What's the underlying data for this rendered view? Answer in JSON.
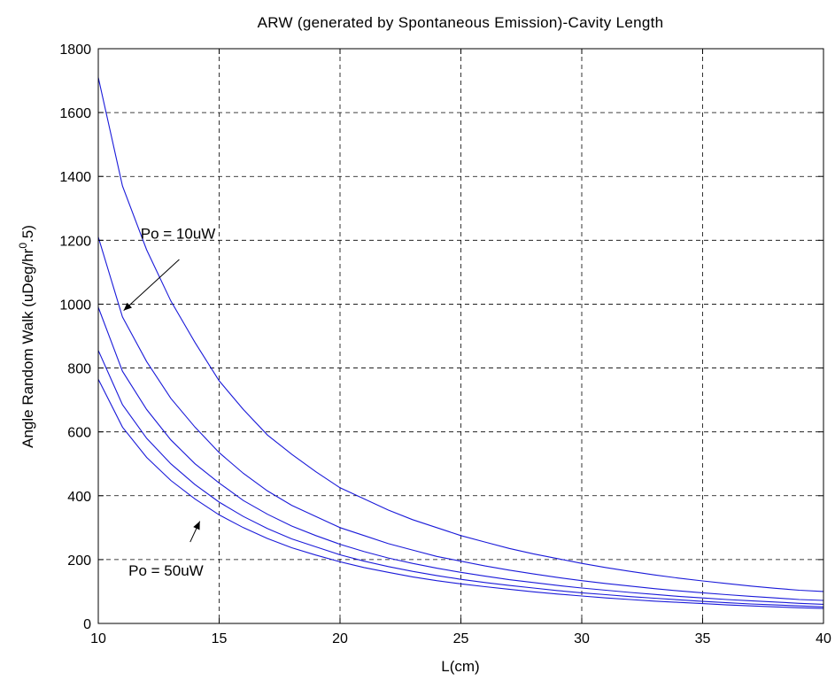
{
  "chart_data": {
    "type": "line",
    "title": "ARW (generated by Spontaneous Emission)-Cavity Length",
    "xlabel": "L(cm)",
    "ylabel": "Angle Random Walk (uDeg/hr^0.5)",
    "ylabel_parts": {
      "base": "Angle Random Walk (uDeg/hr",
      "sup": "0",
      "tail": ".5)"
    },
    "xlim": [
      10,
      40
    ],
    "ylim": [
      0,
      1800
    ],
    "xticks": [
      10,
      15,
      20,
      25,
      30,
      35,
      40
    ],
    "yticks": [
      0,
      200,
      400,
      600,
      800,
      1000,
      1200,
      1400,
      1600,
      1800
    ],
    "grid": true,
    "x": [
      10,
      11,
      12,
      13,
      14,
      15,
      16,
      17,
      18,
      19,
      20,
      21,
      22,
      23,
      24,
      25,
      26,
      27,
      28,
      29,
      30,
      31,
      32,
      33,
      34,
      35,
      36,
      37,
      38,
      39,
      40
    ],
    "series": [
      {
        "values": [
          1710,
          1370,
          1170,
          1010,
          880,
          760,
          670,
          590,
          530,
          475,
          425,
          390,
          355,
          325,
          300,
          275,
          255,
          235,
          218,
          203,
          188,
          175,
          163,
          152,
          142,
          133,
          125,
          117,
          110,
          104,
          100
        ]
      },
      {
        "values": [
          1210,
          960,
          820,
          705,
          615,
          535,
          470,
          415,
          370,
          335,
          300,
          275,
          250,
          230,
          210,
          195,
          180,
          167,
          155,
          144,
          134,
          125,
          117,
          109,
          102,
          96,
          90,
          85,
          80,
          75,
          72
        ]
      },
      {
        "values": [
          990,
          790,
          670,
          575,
          500,
          440,
          385,
          342,
          305,
          275,
          248,
          225,
          205,
          188,
          173,
          160,
          148,
          137,
          128,
          119,
          111,
          104,
          97,
          91,
          85,
          80,
          75,
          71,
          67,
          63,
          60
        ]
      },
      {
        "values": [
          855,
          685,
          580,
          500,
          435,
          380,
          335,
          297,
          265,
          240,
          215,
          195,
          178,
          163,
          150,
          138,
          128,
          119,
          111,
          103,
          96,
          90,
          84,
          79,
          74,
          69,
          65,
          61,
          58,
          55,
          52
        ]
      },
      {
        "values": [
          765,
          615,
          520,
          448,
          390,
          340,
          300,
          266,
          237,
          214,
          193,
          175,
          160,
          146,
          134,
          124,
          115,
          107,
          99,
          92,
          86,
          80,
          75,
          70,
          66,
          62,
          58,
          55,
          52,
          49,
          47
        ]
      }
    ],
    "annotations": [
      {
        "text": "Po = 10uW",
        "text_x": 11.75,
        "text_y": 1205,
        "arrow_from": [
          13.35,
          1140
        ],
        "arrow_to": [
          11.05,
          980
        ]
      },
      {
        "text": "Po = 50uW",
        "text_x": 11.25,
        "text_y": 150,
        "arrow_from": [
          13.8,
          255
        ],
        "arrow_to": [
          14.2,
          320
        ]
      }
    ]
  }
}
